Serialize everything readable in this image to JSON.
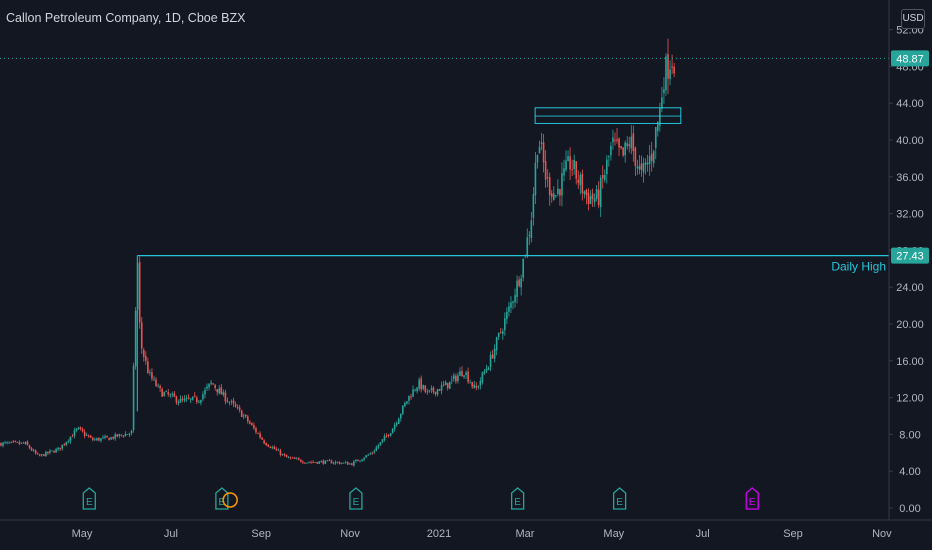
{
  "header": {
    "title": "Callon Petroleum Company, 1D, Cboe BZX",
    "currency": "USD"
  },
  "annotation": {
    "daily_high_label": "Daily High",
    "daily_high_level": 27.43
  },
  "price_tags": {
    "last_price": "48.87",
    "daily_high": "27.43"
  },
  "colors": {
    "background": "#131722",
    "up": "#26a69a",
    "down": "#ef5350",
    "line": "#26c6da",
    "earnings": "#26a69a",
    "earnings_future": "#d500f9",
    "dividend": "#ff9800"
  },
  "chart_data": {
    "type": "candlestick",
    "y_axis": {
      "ticks": [
        "0.00",
        "4.00",
        "8.00",
        "12.00",
        "16.00",
        "20.00",
        "24.00",
        "28.00",
        "32.00",
        "36.00",
        "40.00",
        "44.00",
        "48.00",
        "52.00"
      ],
      "ylim": [
        0,
        52
      ]
    },
    "x_axis": {
      "ticks": [
        "May",
        "Jul",
        "Sep",
        "Nov",
        "2021",
        "Mar",
        "May",
        "Jul",
        "Sep",
        "Nov"
      ]
    },
    "price_path": [
      [
        "2020-03-23",
        7.0
      ],
      [
        "2020-04-01",
        5.6
      ],
      [
        "2020-04-15",
        6.4
      ],
      [
        "2020-04-28",
        8.6
      ],
      [
        "2020-05-08",
        7.4
      ],
      [
        "2020-05-20",
        7.6
      ],
      [
        "2020-06-04",
        8.2
      ],
      [
        "2020-06-08",
        27.43
      ],
      [
        "2020-06-10",
        18.0
      ],
      [
        "2020-06-16",
        14.5
      ],
      [
        "2020-06-24",
        12.6
      ],
      [
        "2020-07-08",
        11.6
      ],
      [
        "2020-07-20",
        11.8
      ],
      [
        "2020-07-29",
        13.6
      ],
      [
        "2020-08-06",
        12.2
      ],
      [
        "2020-08-20",
        10.0
      ],
      [
        "2020-09-03",
        7.2
      ],
      [
        "2020-09-18",
        5.5
      ],
      [
        "2020-10-02",
        5.0
      ],
      [
        "2020-10-19",
        5.0
      ],
      [
        "2020-11-02",
        4.8
      ],
      [
        "2020-11-16",
        6.0
      ],
      [
        "2020-11-30",
        8.6
      ],
      [
        "2020-12-11",
        12.0
      ],
      [
        "2020-12-18",
        13.6
      ],
      [
        "2020-12-24",
        12.4
      ],
      [
        "2021-01-08",
        13.5
      ],
      [
        "2021-01-18",
        15.0
      ],
      [
        "2021-01-26",
        12.8
      ],
      [
        "2021-02-05",
        16.0
      ],
      [
        "2021-02-19",
        22.0
      ],
      [
        "2021-02-26",
        25.5
      ],
      [
        "2021-03-05",
        31.0
      ],
      [
        "2021-03-10",
        40.5
      ],
      [
        "2021-03-16",
        35.5
      ],
      [
        "2021-03-22",
        34.0
      ],
      [
        "2021-04-01",
        37.5
      ],
      [
        "2021-04-12",
        34.0
      ],
      [
        "2021-04-20",
        33.5
      ],
      [
        "2021-04-30",
        39.5
      ],
      [
        "2021-05-07",
        38.0
      ],
      [
        "2021-05-12",
        40.0
      ],
      [
        "2021-05-20",
        36.0
      ],
      [
        "2021-05-27",
        38.5
      ],
      [
        "2021-06-02",
        43.5
      ],
      [
        "2021-06-04",
        47.0
      ],
      [
        "2021-06-09",
        48.87
      ]
    ],
    "horizontal_line": {
      "value": 27.43,
      "from": "2020-06-08",
      "label": "Daily High"
    },
    "resistance_zone": {
      "from": "2021-03-08",
      "to": "2021-06-16",
      "y_low": 41.8,
      "y_high": 43.5
    },
    "last_price": 48.87,
    "events": [
      {
        "type": "earnings",
        "date": "2020-05-06",
        "label": "E"
      },
      {
        "type": "earnings",
        "date": "2020-08-05",
        "label": "E"
      },
      {
        "type": "dividend",
        "date": "2020-08-10",
        "label": ""
      },
      {
        "type": "earnings",
        "date": "2020-11-05",
        "label": "E"
      },
      {
        "type": "earnings",
        "date": "2021-02-24",
        "label": "E"
      },
      {
        "type": "earnings",
        "date": "2021-05-05",
        "label": "E"
      },
      {
        "type": "earnings-upcoming",
        "date": "2021-08-04",
        "label": "E"
      }
    ]
  }
}
